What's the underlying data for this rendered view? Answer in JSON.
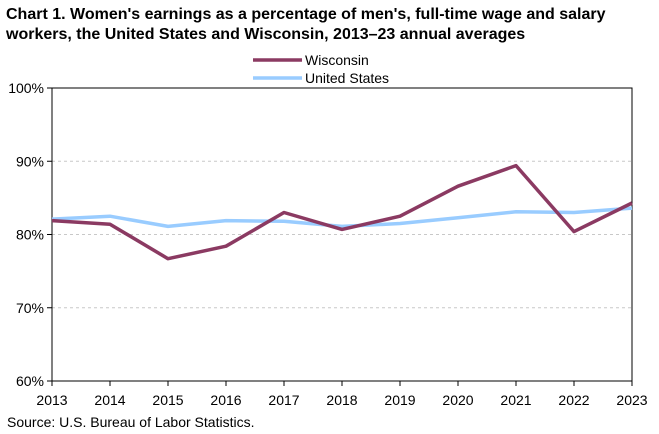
{
  "title": "Chart 1. Women's earnings as a percentage of men's, full-time wage and salary workers, the United States and Wisconsin, 2013–23 annual averages",
  "source": "Source:  U.S. Bureau of Labor Statistics.",
  "chart_data": {
    "type": "line",
    "title": "Chart 1. Women's earnings as a percentage of men's, full-time wage and salary workers, the United States and Wisconsin, 2013–23 annual averages",
    "x": [
      2013,
      2014,
      2015,
      2016,
      2017,
      2018,
      2019,
      2020,
      2021,
      2022,
      2023
    ],
    "x_tick_labels": [
      "2013",
      "2014",
      "2015",
      "2016",
      "2017",
      "2018",
      "2019",
      "2020",
      "2021",
      "2022",
      "2023"
    ],
    "ylim": [
      60,
      100
    ],
    "y_ticks": [
      60,
      70,
      80,
      90,
      100
    ],
    "y_tick_labels": [
      "60%",
      "70%",
      "80%",
      "90%",
      "100%"
    ],
    "grid": "horizontal dashed",
    "legend_position": "top-center",
    "series": [
      {
        "name": "Wisconsin",
        "color": "#8B3A62",
        "values": [
          81.9,
          81.4,
          76.7,
          78.4,
          83.0,
          80.7,
          82.5,
          86.6,
          89.4,
          80.4,
          84.3
        ]
      },
      {
        "name": "United States",
        "color": "#99CCFF",
        "values": [
          82.1,
          82.5,
          81.1,
          81.9,
          81.8,
          81.1,
          81.5,
          82.3,
          83.1,
          83.0,
          83.6
        ]
      }
    ]
  }
}
